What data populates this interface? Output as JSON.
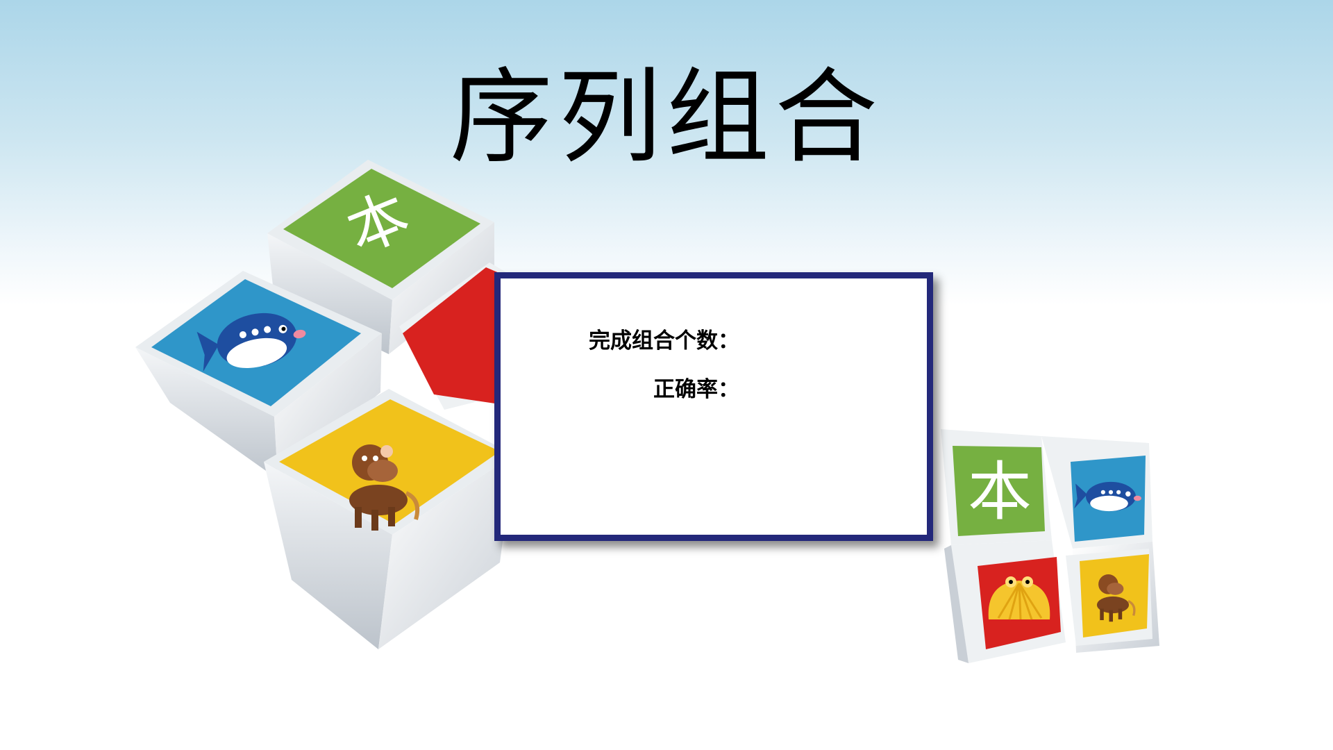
{
  "title": "序列组合",
  "panel": {
    "count_label": "完成组合个数：",
    "rate_label": "正确率："
  },
  "tiles": {
    "character": "本",
    "colors": {
      "green": "#76b041",
      "blue": "#2f96c9",
      "yellow": "#f1c21b",
      "red": "#d8221f"
    }
  },
  "icons": [
    "fish-icon",
    "horse-icon",
    "shell-icon"
  ],
  "colors": {
    "panel_border": "#23287a",
    "title": "#000000"
  }
}
